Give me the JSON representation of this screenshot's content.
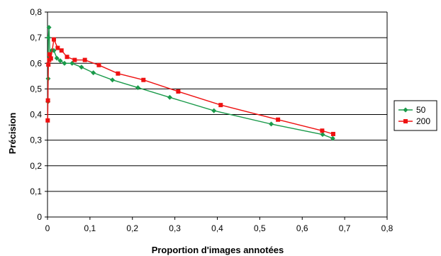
{
  "chart_data": {
    "type": "line",
    "title": "",
    "xlabel": "Proportion d'images annotées",
    "ylabel": "Précision",
    "xlim": [
      0,
      0.8
    ],
    "ylim": [
      0,
      0.8
    ],
    "x_ticks": [
      "0",
      "0,1",
      "0,2",
      "0,3",
      "0,4",
      "0,5",
      "0,6",
      "0,7",
      "0,8"
    ],
    "y_ticks": [
      "0",
      "0,1",
      "0,2",
      "0,3",
      "0,4",
      "0,5",
      "0,6",
      "0,7",
      "0,8"
    ],
    "grid": "horizontal",
    "legend_position": "right",
    "series": [
      {
        "name": "50",
        "color": "#1a9a4a",
        "marker": "diamond",
        "points": [
          [
            0.001,
            0.45
          ],
          [
            0.0015,
            0.54
          ],
          [
            0.002,
            0.7
          ],
          [
            0.0035,
            0.74
          ],
          [
            0.006,
            0.62
          ],
          [
            0.01,
            0.65
          ],
          [
            0.015,
            0.65
          ],
          [
            0.022,
            0.62
          ],
          [
            0.03,
            0.61
          ],
          [
            0.04,
            0.6
          ],
          [
            0.058,
            0.6
          ],
          [
            0.08,
            0.585
          ],
          [
            0.108,
            0.563
          ],
          [
            0.153,
            0.535
          ],
          [
            0.213,
            0.505
          ],
          [
            0.288,
            0.467
          ],
          [
            0.392,
            0.415
          ],
          [
            0.527,
            0.363
          ],
          [
            0.648,
            0.322
          ],
          [
            0.672,
            0.307
          ]
        ]
      },
      {
        "name": "200",
        "color": "#ee1111",
        "marker": "square",
        "points": [
          [
            0.0005,
            0.377
          ],
          [
            0.001,
            0.455
          ],
          [
            0.002,
            0.595
          ],
          [
            0.004,
            0.613
          ],
          [
            0.005,
            0.635
          ],
          [
            0.008,
            0.619
          ],
          [
            0.015,
            0.693
          ],
          [
            0.024,
            0.66
          ],
          [
            0.033,
            0.65
          ],
          [
            0.046,
            0.625
          ],
          [
            0.064,
            0.613
          ],
          [
            0.088,
            0.613
          ],
          [
            0.121,
            0.593
          ],
          [
            0.166,
            0.56
          ],
          [
            0.226,
            0.535
          ],
          [
            0.308,
            0.49
          ],
          [
            0.408,
            0.437
          ],
          [
            0.543,
            0.38
          ],
          [
            0.647,
            0.337
          ],
          [
            0.673,
            0.324
          ]
        ]
      }
    ]
  }
}
